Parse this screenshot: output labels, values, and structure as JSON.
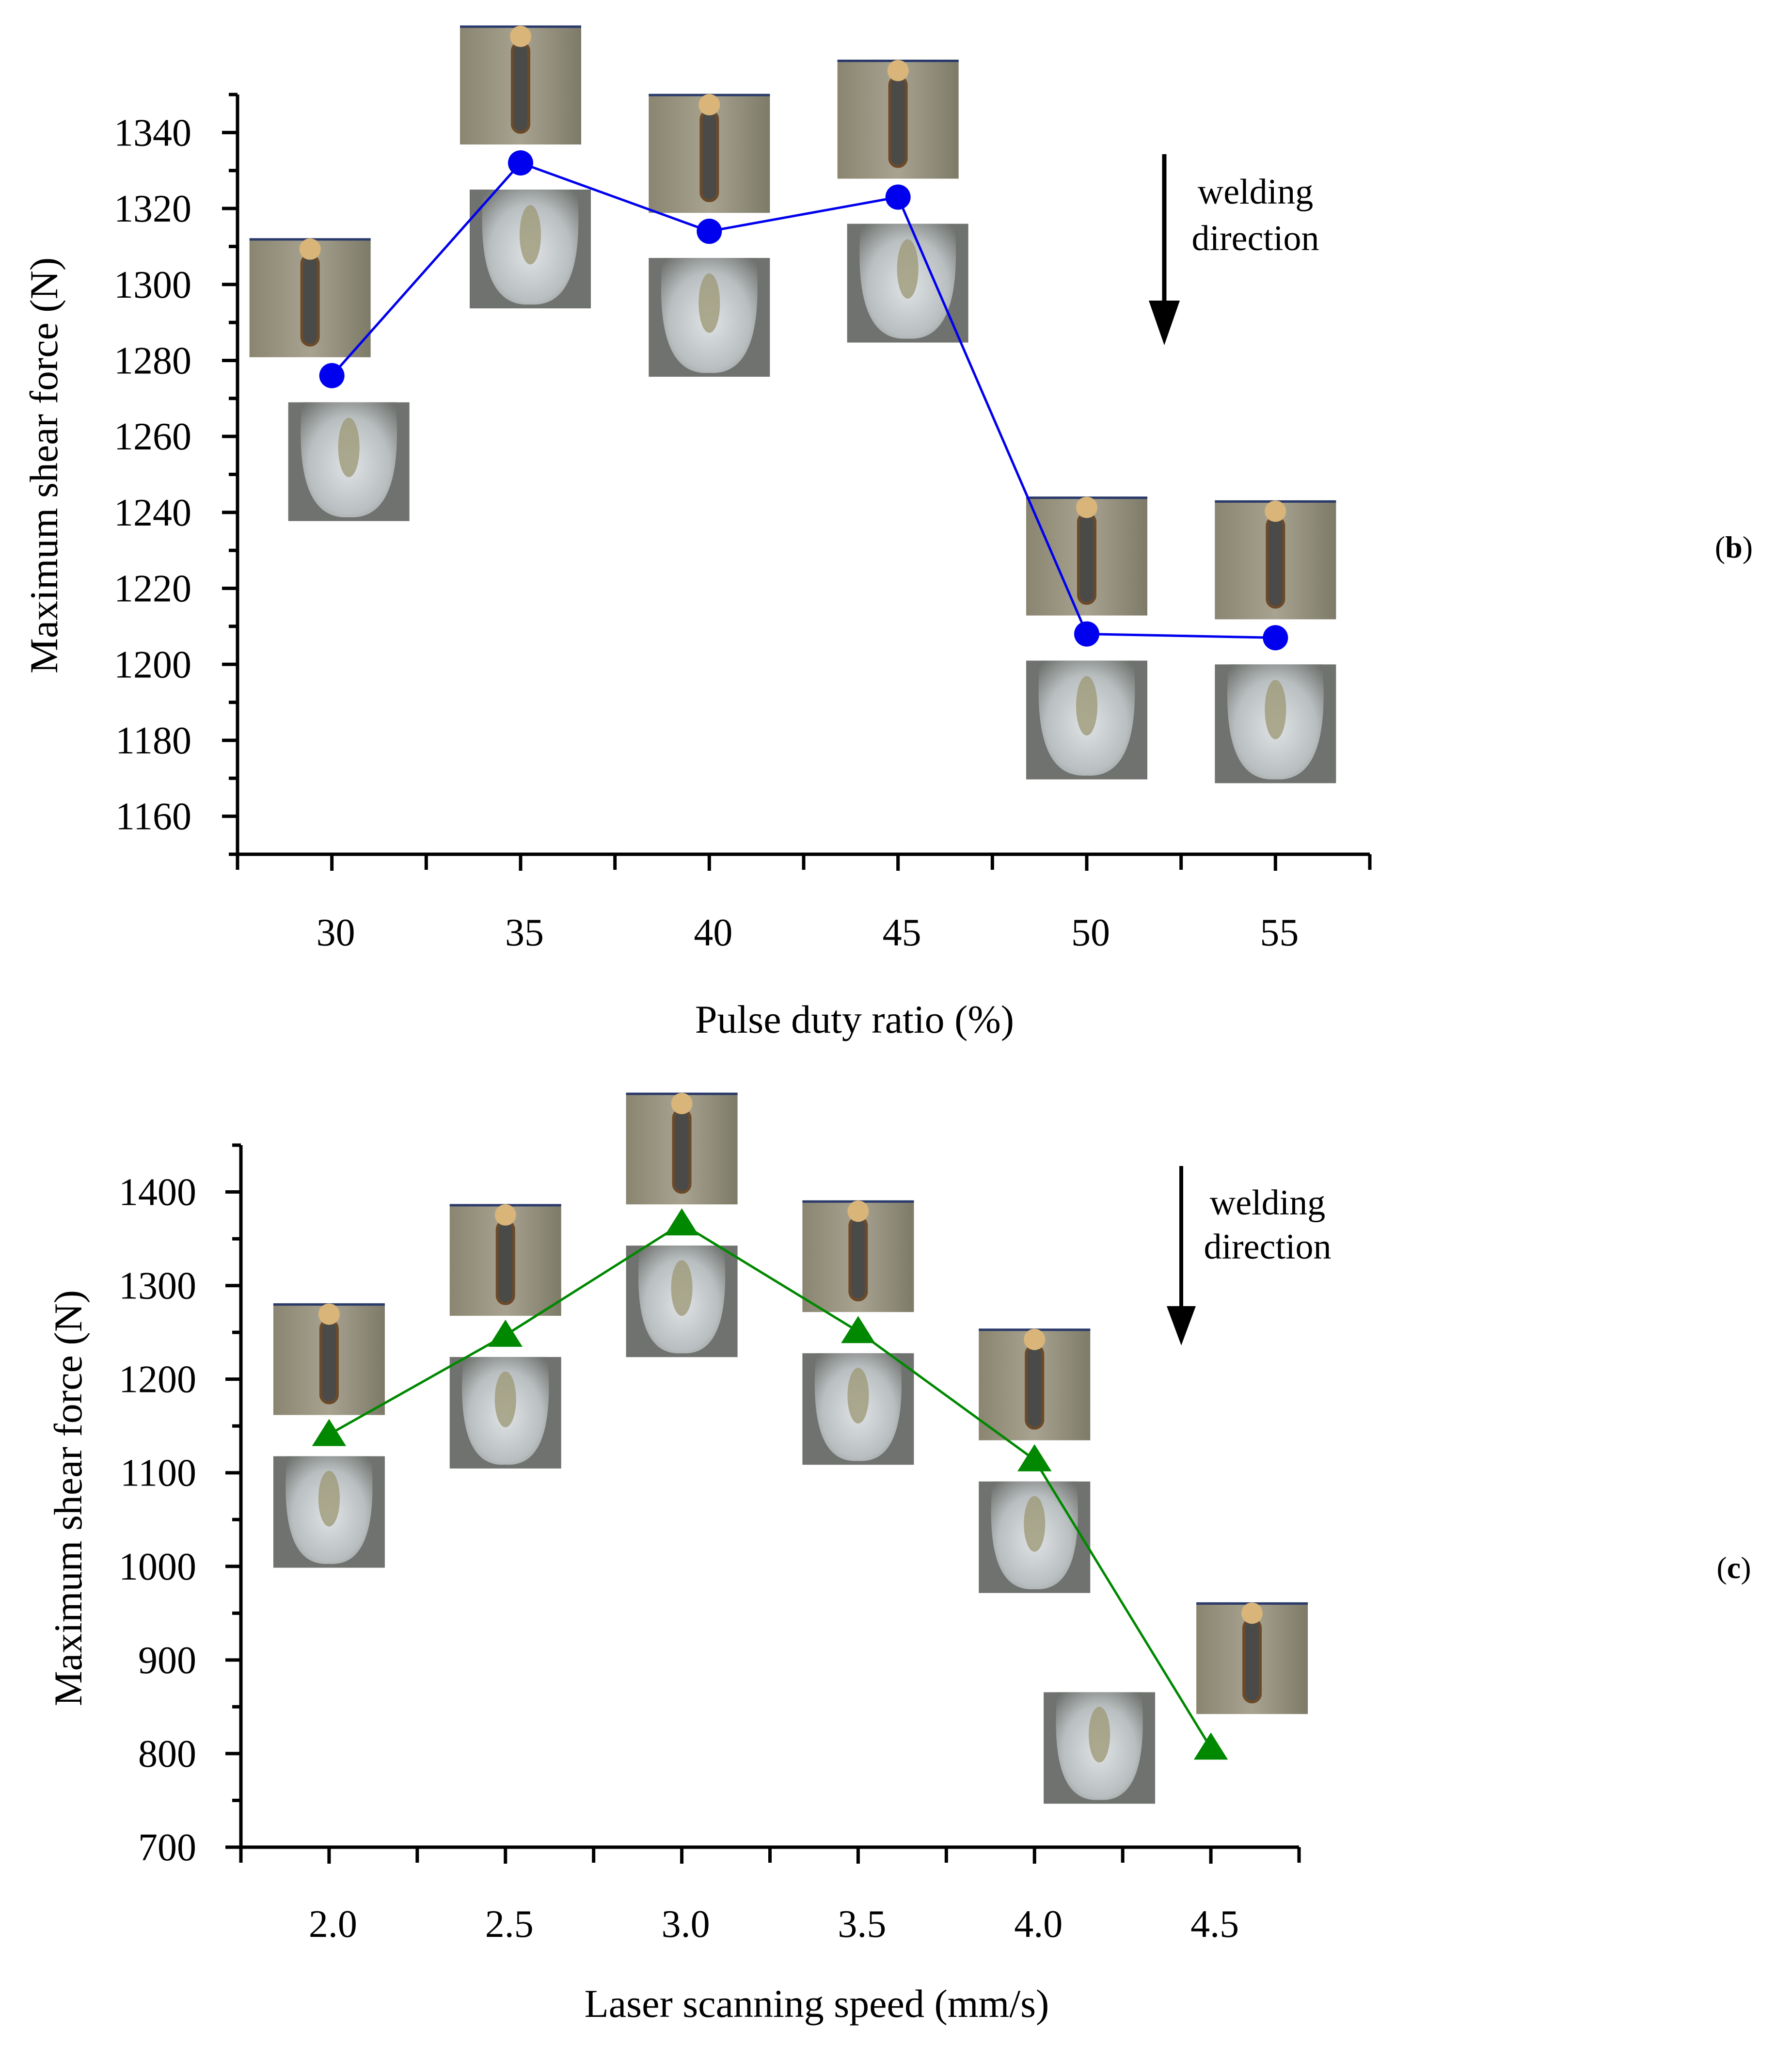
{
  "chart_data": [
    {
      "type": "line",
      "panel_label": "(b)",
      "panel_letter": "b",
      "xlabel": "Pulse duty ratio (%)",
      "ylabel": "Maximum shear force (N)",
      "categories": [
        "30",
        "35",
        "40",
        "45",
        "50",
        "55"
      ],
      "x": [
        30,
        35,
        40,
        45,
        50,
        55
      ],
      "values": [
        1276,
        1332,
        1314,
        1323,
        1208,
        1207
      ],
      "xlim": [
        27.5,
        57.5
      ],
      "ylim": [
        1150,
        1350
      ],
      "y_ticks": [
        1160,
        1180,
        1200,
        1220,
        1240,
        1260,
        1280,
        1300,
        1320,
        1340
      ],
      "marker": "circle",
      "color": "#0000ee",
      "annotation": [
        "welding",
        "direction"
      ],
      "insets": [
        {
          "kind": "top-surface",
          "x": 30,
          "position": "above"
        },
        {
          "kind": "cross-section",
          "x": 30,
          "position": "below"
        },
        {
          "kind": "top-surface",
          "x": 35,
          "position": "above"
        },
        {
          "kind": "cross-section",
          "x": 35,
          "position": "below"
        },
        {
          "kind": "top-surface",
          "x": 40,
          "position": "above"
        },
        {
          "kind": "cross-section",
          "x": 40,
          "position": "below"
        },
        {
          "kind": "top-surface",
          "x": 45,
          "position": "above"
        },
        {
          "kind": "cross-section",
          "x": 45,
          "position": "below"
        },
        {
          "kind": "top-surface",
          "x": 50,
          "position": "above"
        },
        {
          "kind": "cross-section",
          "x": 50,
          "position": "below"
        },
        {
          "kind": "top-surface",
          "x": 55,
          "position": "above"
        },
        {
          "kind": "cross-section",
          "x": 55,
          "position": "below"
        }
      ]
    },
    {
      "type": "line",
      "panel_label": "(c)",
      "panel_letter": "c",
      "xlabel": "Laser scanning speed (mm/s)",
      "ylabel": "Maximum shear force (N)",
      "categories": [
        "2.0",
        "2.5",
        "3.0",
        "3.5",
        "4.0",
        "4.5"
      ],
      "x": [
        2.0,
        2.5,
        3.0,
        3.5,
        4.0,
        4.5
      ],
      "values": [
        1141,
        1247,
        1366,
        1251,
        1114,
        806
      ],
      "xlim": [
        1.75,
        4.75
      ],
      "ylim": [
        700,
        1450
      ],
      "y_ticks": [
        700,
        800,
        900,
        1000,
        1100,
        1200,
        1300,
        1400
      ],
      "marker": "triangle",
      "color": "#008800",
      "annotation": [
        "welding",
        "direction"
      ],
      "insets": [
        {
          "kind": "top-surface",
          "x": 2.0,
          "position": "above"
        },
        {
          "kind": "cross-section",
          "x": 2.0,
          "position": "below"
        },
        {
          "kind": "top-surface",
          "x": 2.5,
          "position": "above"
        },
        {
          "kind": "cross-section",
          "x": 2.5,
          "position": "below"
        },
        {
          "kind": "top-surface",
          "x": 3.0,
          "position": "above"
        },
        {
          "kind": "cross-section",
          "x": 3.0,
          "position": "below"
        },
        {
          "kind": "top-surface",
          "x": 3.5,
          "position": "above"
        },
        {
          "kind": "cross-section",
          "x": 3.5,
          "position": "below"
        },
        {
          "kind": "top-surface",
          "x": 4.0,
          "position": "above"
        },
        {
          "kind": "cross-section",
          "x": 4.0,
          "position": "below"
        },
        {
          "kind": "top-surface",
          "x": 4.5,
          "position": "right"
        },
        {
          "kind": "cross-section",
          "x": 4.5,
          "position": "left"
        }
      ]
    }
  ]
}
